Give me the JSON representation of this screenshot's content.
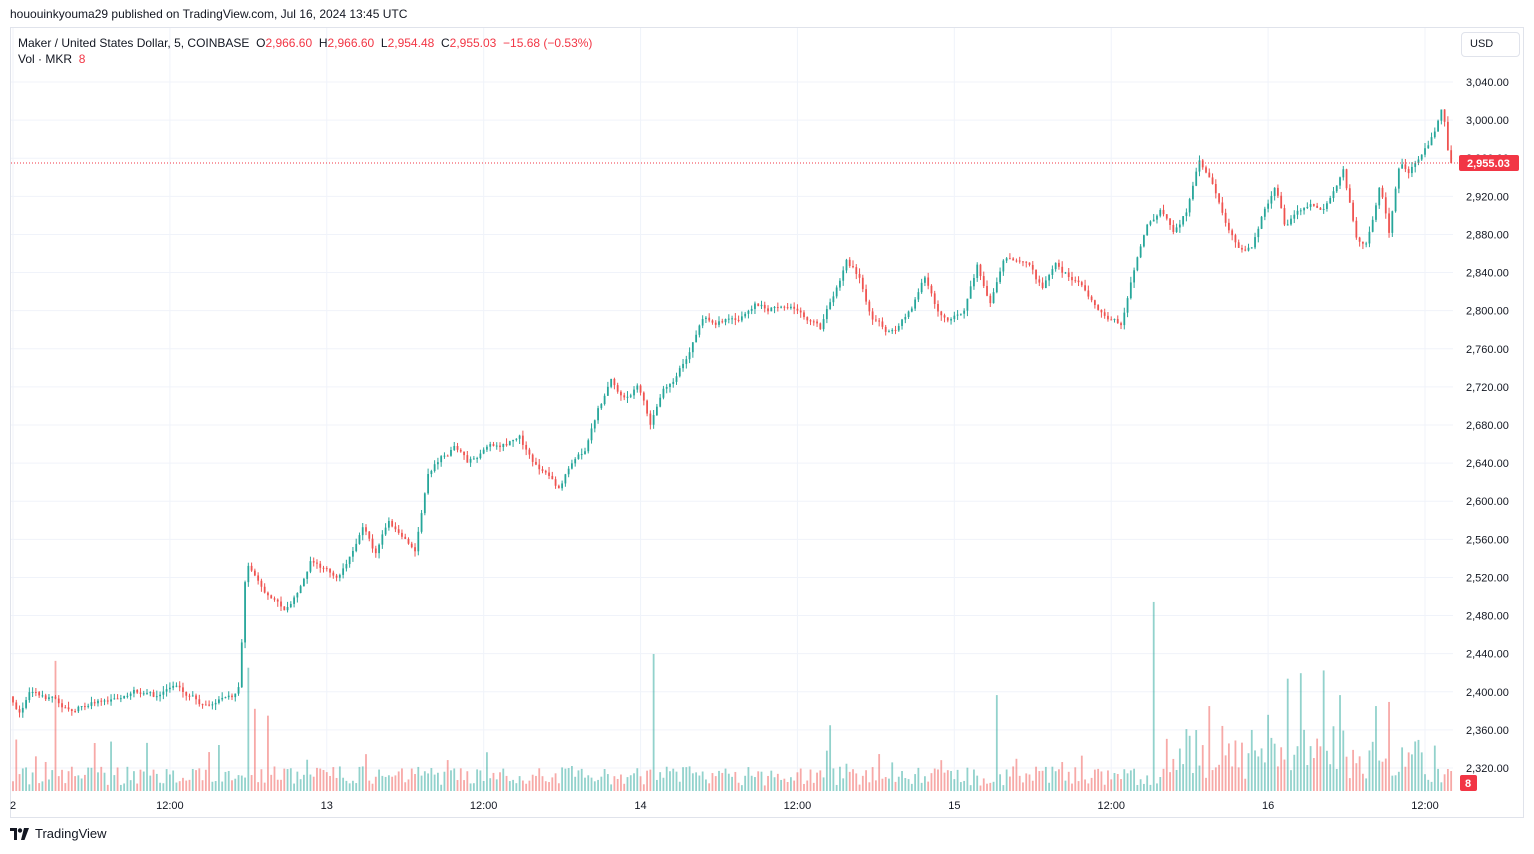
{
  "publisher_line": "hououinkyouma29 published on TradingView.com, Jul 16, 2024 13:45 UTC",
  "legend": {
    "symbol": "Maker / United States Dollar, 5, COINBASE",
    "o_label": "O",
    "o_value": "2,966.60",
    "h_label": "H",
    "h_value": "2,966.60",
    "l_label": "L",
    "l_value": "2,954.48",
    "c_label": "C",
    "c_value": "2,955.03",
    "change": "−15.68 (−0.53%)",
    "vol_label": "Vol · MKR",
    "vol_value": "8"
  },
  "currency_button": "USD",
  "footer": {
    "logo_icon": "tradingview-logo-icon",
    "brand": "TradingView"
  },
  "colors": {
    "up": "#26a69a",
    "down": "#ef5350",
    "last_price": "#f23645",
    "grid": "#f0f3fa",
    "axis_text": "#131722"
  },
  "chart_data": {
    "type": "candlestick",
    "title": "Maker / United States Dollar, 5, COINBASE",
    "interval": "5",
    "exchange": "COINBASE",
    "last_price": 2955.03,
    "last_price_label": "2,955.03",
    "last_volume_label": "8",
    "ylim": [
      2290,
      3055
    ],
    "y_ticks": [
      3040,
      3000,
      2960,
      2920,
      2880,
      2840,
      2800,
      2760,
      2720,
      2680,
      2640,
      2600,
      2560,
      2520,
      2480,
      2440,
      2400,
      2360,
      2320
    ],
    "y_tick_labels": [
      "3,040.00",
      "3,000.00",
      "2,960.00",
      "2,920.00",
      "2,880.00",
      "2,840.00",
      "2,800.00",
      "2,760.00",
      "2,720.00",
      "2,680.00",
      "2,640.00",
      "2,600.00",
      "2,560.00",
      "2,520.00",
      "2,480.00",
      "2,440.00",
      "2,400.00",
      "2,360.00",
      "2,320.00"
    ],
    "x_ticks": [
      {
        "label": "2",
        "t": 0
      },
      {
        "label": "12:00",
        "t": 12
      },
      {
        "label": "13",
        "t": 24
      },
      {
        "label": "12:00",
        "t": 36
      },
      {
        "label": "14",
        "t": 48
      },
      {
        "label": "12:00",
        "t": 60
      },
      {
        "label": "15",
        "t": 72
      },
      {
        "label": "12:00",
        "t": 84
      },
      {
        "label": "16",
        "t": 96
      },
      {
        "label": "12:00",
        "t": 108
      }
    ],
    "x_range_hours": [
      0,
      110.2
    ],
    "price_path": [
      [
        0,
        2395
      ],
      [
        0.8,
        2380
      ],
      [
        1.5,
        2405
      ],
      [
        3,
        2395
      ],
      [
        4.5,
        2380
      ],
      [
        6,
        2388
      ],
      [
        8,
        2392
      ],
      [
        9.5,
        2400
      ],
      [
        11,
        2395
      ],
      [
        13,
        2405
      ],
      [
        14,
        2395
      ],
      [
        15,
        2385
      ],
      [
        16,
        2390
      ],
      [
        17,
        2395
      ],
      [
        17.6,
        2410
      ],
      [
        17.9,
        2500
      ],
      [
        18.1,
        2535
      ],
      [
        19,
        2510
      ],
      [
        20,
        2495
      ],
      [
        21,
        2485
      ],
      [
        22,
        2500
      ],
      [
        23,
        2535
      ],
      [
        24,
        2530
      ],
      [
        25,
        2520
      ],
      [
        26,
        2540
      ],
      [
        27,
        2575
      ],
      [
        28,
        2545
      ],
      [
        29,
        2580
      ],
      [
        30,
        2565
      ],
      [
        31,
        2550
      ],
      [
        32,
        2630
      ],
      [
        33,
        2645
      ],
      [
        34,
        2655
      ],
      [
        35,
        2640
      ],
      [
        36,
        2650
      ],
      [
        37,
        2655
      ],
      [
        38,
        2660
      ],
      [
        39,
        2665
      ],
      [
        40,
        2640
      ],
      [
        41,
        2630
      ],
      [
        42,
        2610
      ],
      [
        43,
        2640
      ],
      [
        44,
        2655
      ],
      [
        45,
        2700
      ],
      [
        46,
        2725
      ],
      [
        47,
        2710
      ],
      [
        48,
        2720
      ],
      [
        49,
        2680
      ],
      [
        50,
        2720
      ],
      [
        51,
        2735
      ],
      [
        52,
        2760
      ],
      [
        53,
        2790
      ],
      [
        54,
        2785
      ],
      [
        55,
        2790
      ],
      [
        56,
        2795
      ],
      [
        57,
        2810
      ],
      [
        58,
        2800
      ],
      [
        59,
        2805
      ],
      [
        60,
        2800
      ],
      [
        61,
        2790
      ],
      [
        62,
        2780
      ],
      [
        63,
        2815
      ],
      [
        64,
        2850
      ],
      [
        65,
        2835
      ],
      [
        66,
        2790
      ],
      [
        67,
        2780
      ],
      [
        68,
        2785
      ],
      [
        69,
        2800
      ],
      [
        70,
        2835
      ],
      [
        71,
        2795
      ],
      [
        72,
        2790
      ],
      [
        73,
        2800
      ],
      [
        74,
        2845
      ],
      [
        75,
        2810
      ],
      [
        76,
        2860
      ],
      [
        77,
        2855
      ],
      [
        78,
        2845
      ],
      [
        79,
        2820
      ],
      [
        80,
        2845
      ],
      [
        81,
        2835
      ],
      [
        82,
        2825
      ],
      [
        83,
        2805
      ],
      [
        84,
        2790
      ],
      [
        85,
        2785
      ],
      [
        86,
        2845
      ],
      [
        87,
        2895
      ],
      [
        88,
        2905
      ],
      [
        89,
        2880
      ],
      [
        90,
        2905
      ],
      [
        91,
        2955
      ],
      [
        92,
        2930
      ],
      [
        93,
        2890
      ],
      [
        94,
        2870
      ],
      [
        95,
        2865
      ],
      [
        96,
        2905
      ],
      [
        96.8,
        2930
      ],
      [
        97.5,
        2890
      ],
      [
        98.5,
        2900
      ],
      [
        99.5,
        2910
      ],
      [
        100.5,
        2905
      ],
      [
        101.5,
        2930
      ],
      [
        102,
        2945
      ],
      [
        103,
        2880
      ],
      [
        103.8,
        2870
      ],
      [
        104.8,
        2930
      ],
      [
        105.5,
        2880
      ],
      [
        106.3,
        2950
      ],
      [
        107,
        2945
      ],
      [
        108,
        2960
      ],
      [
        109,
        2985
      ],
      [
        109.6,
        3010
      ],
      [
        110,
        2965
      ],
      [
        110.2,
        2955
      ]
    ],
    "volume_scale": [
      0,
      140
    ],
    "volume_spikes": [
      {
        "t": 3.2,
        "v": 95
      },
      {
        "t": 17.9,
        "v": 90
      },
      {
        "t": 18.4,
        "v": 60
      },
      {
        "t": 19.4,
        "v": 55
      },
      {
        "t": 49.0,
        "v": 100
      },
      {
        "t": 62.6,
        "v": 48
      },
      {
        "t": 75.3,
        "v": 70
      },
      {
        "t": 87.2,
        "v": 138
      },
      {
        "t": 91.5,
        "v": 62
      },
      {
        "t": 97.6,
        "v": 82
      },
      {
        "t": 98.5,
        "v": 86
      },
      {
        "t": 100.3,
        "v": 88
      },
      {
        "t": 101.6,
        "v": 70
      },
      {
        "t": 104.2,
        "v": 62
      },
      {
        "t": 105.3,
        "v": 65
      }
    ]
  }
}
